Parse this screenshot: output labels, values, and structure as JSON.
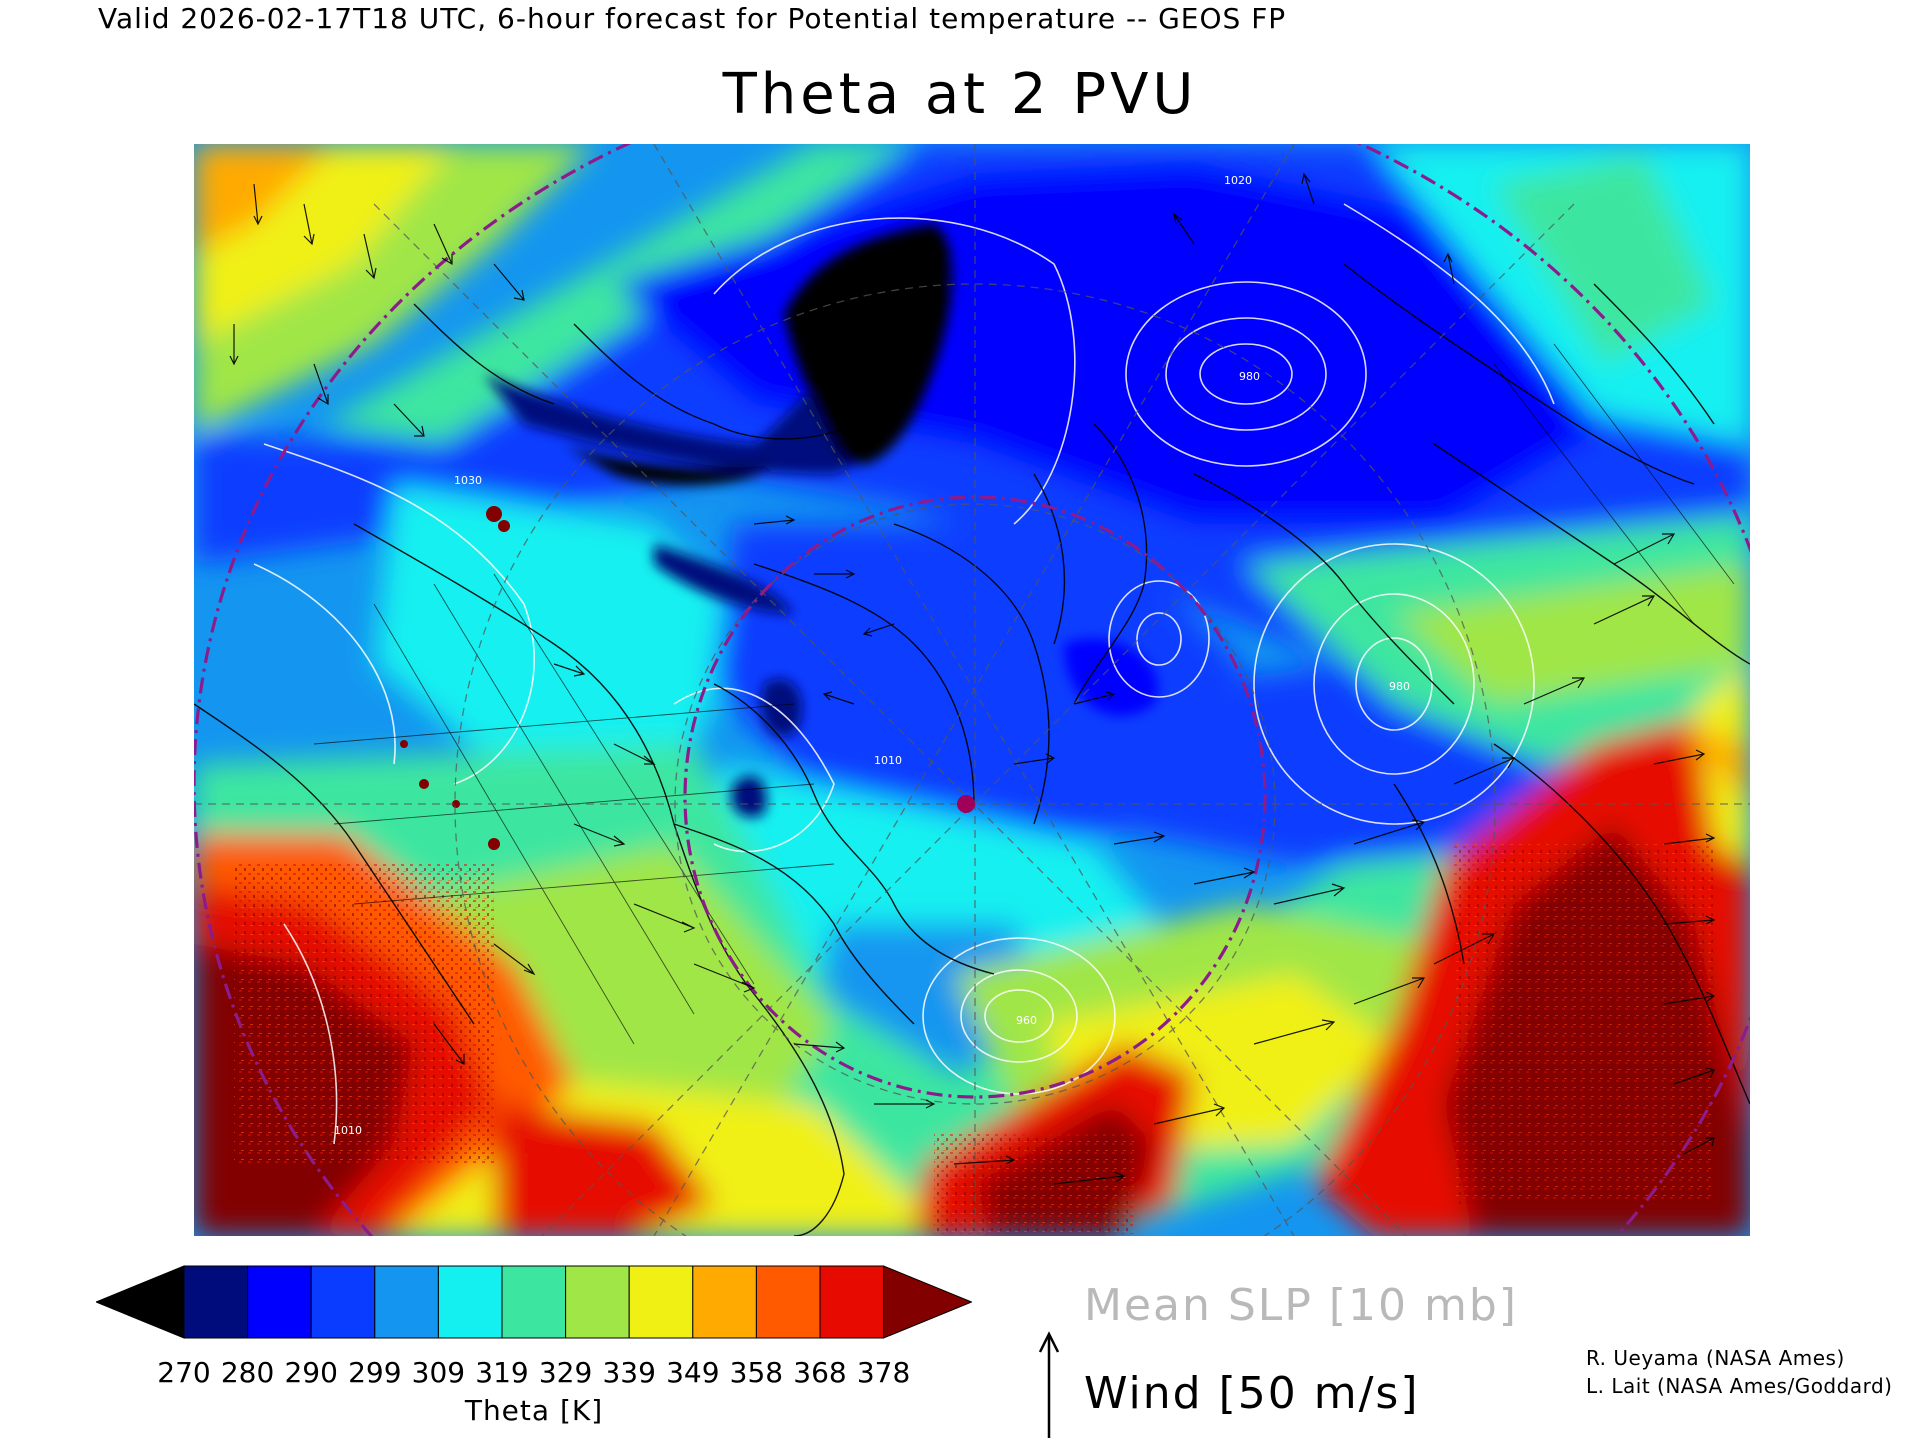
{
  "header": {
    "valid_line": "Valid 2026-02-17T18 UTC, 6-hour forecast for Potential temperature -- GEOS FP",
    "title": "Theta at 2 PVU"
  },
  "colorbar": {
    "colors": [
      "#000000",
      "#000c7c",
      "#0000ff",
      "#0a3cff",
      "#1496f0",
      "#14f0f0",
      "#3ce6a0",
      "#a0e646",
      "#f0f014",
      "#ffaa00",
      "#ff5a00",
      "#e60a00",
      "#820000"
    ],
    "ticks": [
      "270",
      "280",
      "290",
      "299",
      "309",
      "319",
      "329",
      "339",
      "349",
      "358",
      "368",
      "378"
    ],
    "label": "Theta [K]"
  },
  "legends": {
    "slp": "Mean SLP [10 mb]",
    "wind": "Wind [50 m/s]"
  },
  "credits": {
    "line1": "R. Ueyama (NASA Ames)",
    "line2": "L. Lait (NASA Ames/Goddard)"
  },
  "map": {
    "region": "Northern Hemisphere polar stereographic view over North America, Arctic and North Atlantic",
    "slp_contour_labels": [
      "1010",
      "1020",
      "1030",
      "980",
      "960"
    ],
    "marker_color": "#a0005a",
    "grid_circle_color": "#8c1c8c"
  }
}
